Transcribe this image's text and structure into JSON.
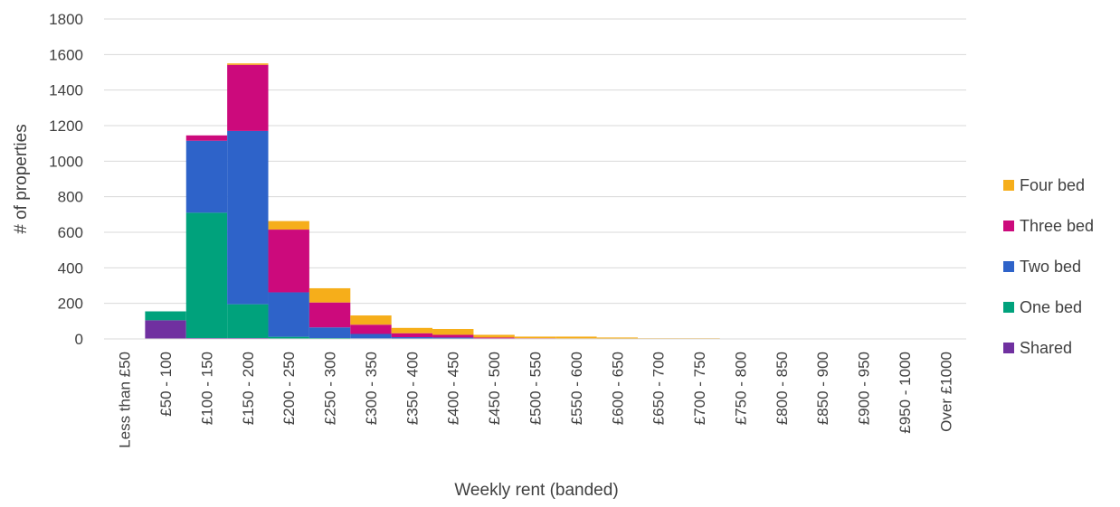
{
  "chart_data": {
    "type": "bar",
    "stacked": true,
    "xlabel": "Weekly rent (banded)",
    "ylabel": "# of properties",
    "ylim": [
      0,
      1800
    ],
    "yticks": [
      0,
      200,
      400,
      600,
      800,
      1000,
      1200,
      1400,
      1600,
      1800
    ],
    "grid": true,
    "legend_position": "right",
    "categories": [
      "Less than £50",
      "£50 - 100",
      "£100 - 150",
      "£150 - 200",
      "£200 - 250",
      "£250 - 300",
      "£300 - 350",
      "£350 - 400",
      "£400 - 450",
      "£450 - 500",
      "£500 - 550",
      "£550 - 600",
      "£600 - 650",
      "£650 - 700",
      "£700 - 750",
      "£750 - 800",
      "£800 - 850",
      "£850 - 900",
      "£900 - 950",
      "£950 - 1000",
      "Over £1000"
    ],
    "series": [
      {
        "name": "Shared",
        "color": "#7030A0",
        "values": [
          0,
          105,
          5,
          5,
          2,
          2,
          1,
          1,
          1,
          0,
          0,
          0,
          0,
          0,
          0,
          0,
          0,
          0,
          0,
          0,
          0
        ]
      },
      {
        "name": "One bed",
        "color": "#00A27C",
        "values": [
          0,
          50,
          705,
          190,
          10,
          3,
          2,
          1,
          1,
          0,
          0,
          0,
          0,
          0,
          0,
          0,
          0,
          0,
          0,
          0,
          0
        ]
      },
      {
        "name": "Two bed",
        "color": "#2E63C9",
        "values": [
          0,
          0,
          405,
          975,
          250,
          60,
          25,
          8,
          6,
          3,
          1,
          1,
          1,
          0,
          0,
          0,
          0,
          0,
          0,
          0,
          0
        ]
      },
      {
        "name": "Three bed",
        "color": "#CC0A7C",
        "values": [
          0,
          0,
          30,
          372,
          353,
          140,
          52,
          22,
          15,
          5,
          3,
          2,
          1,
          1,
          1,
          0,
          0,
          0,
          0,
          0,
          0
        ]
      },
      {
        "name": "Four bed",
        "color": "#F6AE1A",
        "values": [
          0,
          0,
          0,
          8,
          48,
          80,
          52,
          30,
          33,
          15,
          9,
          10,
          6,
          3,
          3,
          2,
          2,
          1,
          1,
          1,
          1
        ]
      }
    ]
  }
}
